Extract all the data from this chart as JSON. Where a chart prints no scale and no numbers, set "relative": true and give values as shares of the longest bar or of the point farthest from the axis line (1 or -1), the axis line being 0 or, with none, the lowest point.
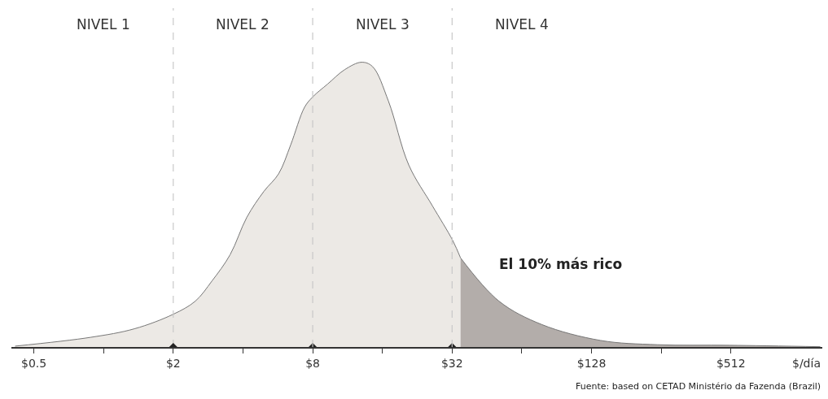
{
  "chart_data": {
    "type": "area",
    "relative": true,
    "log": "x",
    "xlabel": "$/día",
    "xlim": [
      0.4,
      1270
    ],
    "xticks": [
      {
        "value": 0.5,
        "label": "$0.5"
      },
      {
        "value": 1,
        "label": null
      },
      {
        "value": 2,
        "label": "$2"
      },
      {
        "value": 4,
        "label": null
      },
      {
        "value": 8,
        "label": "$8"
      },
      {
        "value": 16,
        "label": null
      },
      {
        "value": 32,
        "label": "$32"
      },
      {
        "value": 64,
        "label": null
      },
      {
        "value": 128,
        "label": "$128"
      },
      {
        "value": 256,
        "label": null
      },
      {
        "value": 512,
        "label": "$512"
      }
    ],
    "series": [
      {
        "color": "#ece9e5",
        "x": [
          0.415,
          0.88,
          1.36,
          2,
          2.49,
          2.94,
          3.52,
          4.16,
          4.93,
          5.7,
          6.43,
          7.38,
          8,
          9.3,
          11.0,
          13.0,
          14.5,
          17.0,
          20.8,
          26.3,
          32.2,
          34.8
        ],
        "values": [
          0.003,
          0.034,
          0.064,
          0.115,
          0.161,
          0.232,
          0.324,
          0.456,
          0.547,
          0.608,
          0.71,
          0.842,
          0.878,
          0.924,
          0.974,
          1.0,
          0.985,
          0.863,
          0.639,
          0.496,
          0.374,
          0.313
        ]
      },
      {
        "name": "El 10% más rico",
        "color": "#b3adaa",
        "x": [
          34.8,
          51,
          78,
          140,
          247,
          508,
          1245
        ],
        "values": [
          0.313,
          0.161,
          0.079,
          0.023,
          0.008,
          0.006,
          0.001
        ]
      }
    ],
    "ref_lines": [
      {
        "axis": "x",
        "value": 2,
        "color": "#c8c8c8",
        "line_style": "dashed"
      },
      {
        "axis": "x",
        "value": 8,
        "color": "#c8c8c8",
        "line_style": "dashed"
      },
      {
        "axis": "x",
        "value": 32,
        "color": "#c8c8c8",
        "line_style": "dashed"
      }
    ],
    "legend": false,
    "annotations": [
      "NIVEL 1",
      "NIVEL 2",
      "NIVEL 3",
      "NIVEL 4",
      "Fuente: based on CETAD Ministério da Fazenda (Brazil)"
    ]
  }
}
